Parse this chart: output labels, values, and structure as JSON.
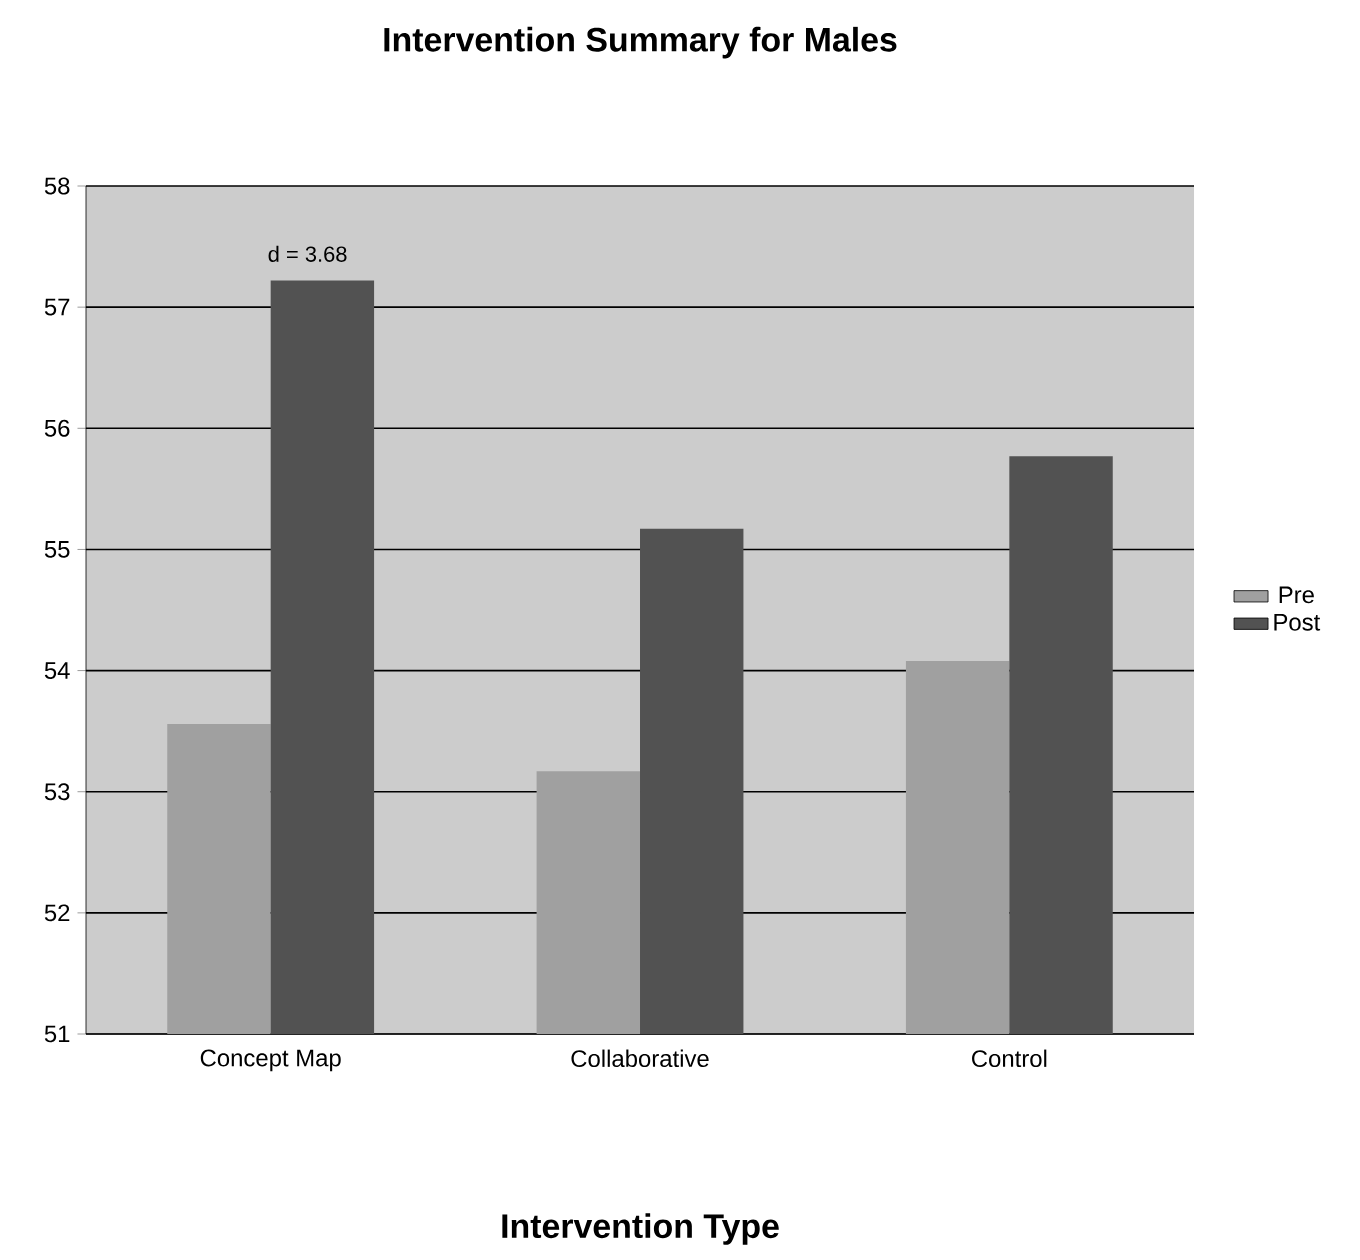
{
  "chart_data": {
    "type": "bar",
    "title": "Intervention Summary for Males",
    "xlabel": "Intervention Type",
    "categories": [
      "Concept Map",
      "Collaborative",
      "Control"
    ],
    "series": [
      {
        "name": "Pre",
        "color": "#a0a0a0",
        "values": [
          53.56,
          53.17,
          54.08
        ]
      },
      {
        "name": "Post",
        "color": "#525252",
        "values": [
          57.22,
          55.17,
          55.77
        ]
      }
    ],
    "ylim": [
      51,
      58
    ],
    "yticks": [
      51,
      52,
      53,
      54,
      55,
      56,
      57,
      58
    ],
    "grid": "y",
    "legend": "right",
    "annotations": [
      "d = 3.68"
    ]
  }
}
